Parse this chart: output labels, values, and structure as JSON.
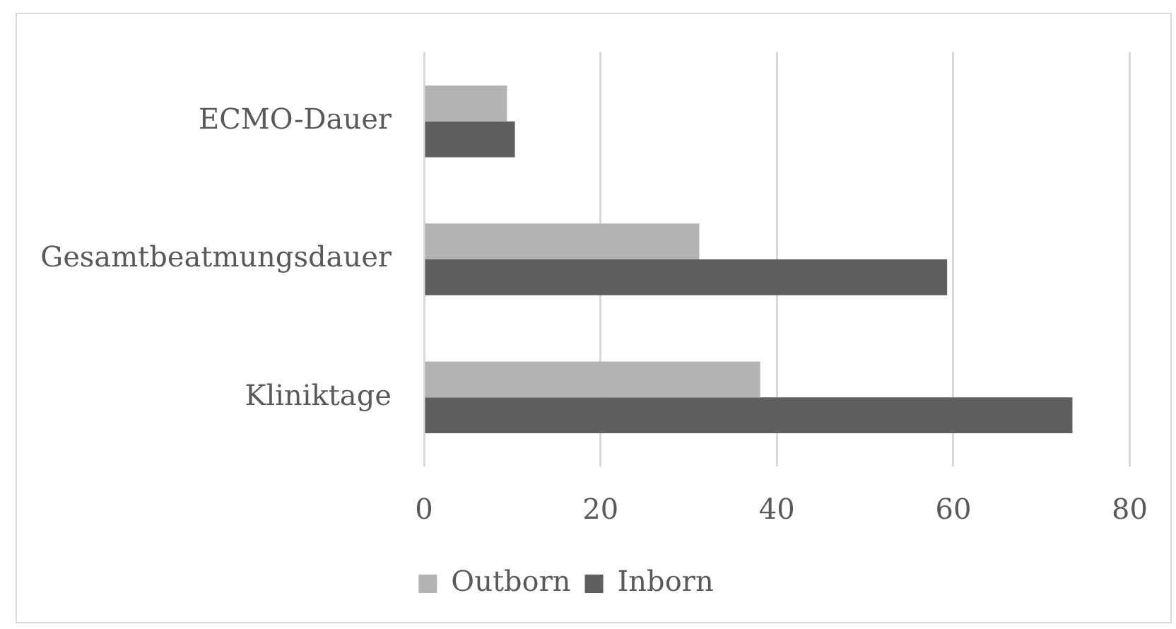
{
  "chart_data": {
    "type": "bar",
    "orientation": "horizontal",
    "categories": [
      "ECMO-Dauer",
      "Gesamtbeatmungsdauer",
      "Kliniktage"
    ],
    "series": [
      {
        "name": "Outborn",
        "color": "#b3b3b3",
        "values": [
          9.4,
          31.2,
          38.1
        ]
      },
      {
        "name": "Inborn",
        "color": "#5f5f5f",
        "values": [
          10.3,
          59.3,
          73.5
        ]
      }
    ],
    "xlim": [
      0,
      80
    ],
    "xticks": [
      0,
      20,
      40,
      60,
      80
    ],
    "grid": "x",
    "legend": "bottom"
  }
}
